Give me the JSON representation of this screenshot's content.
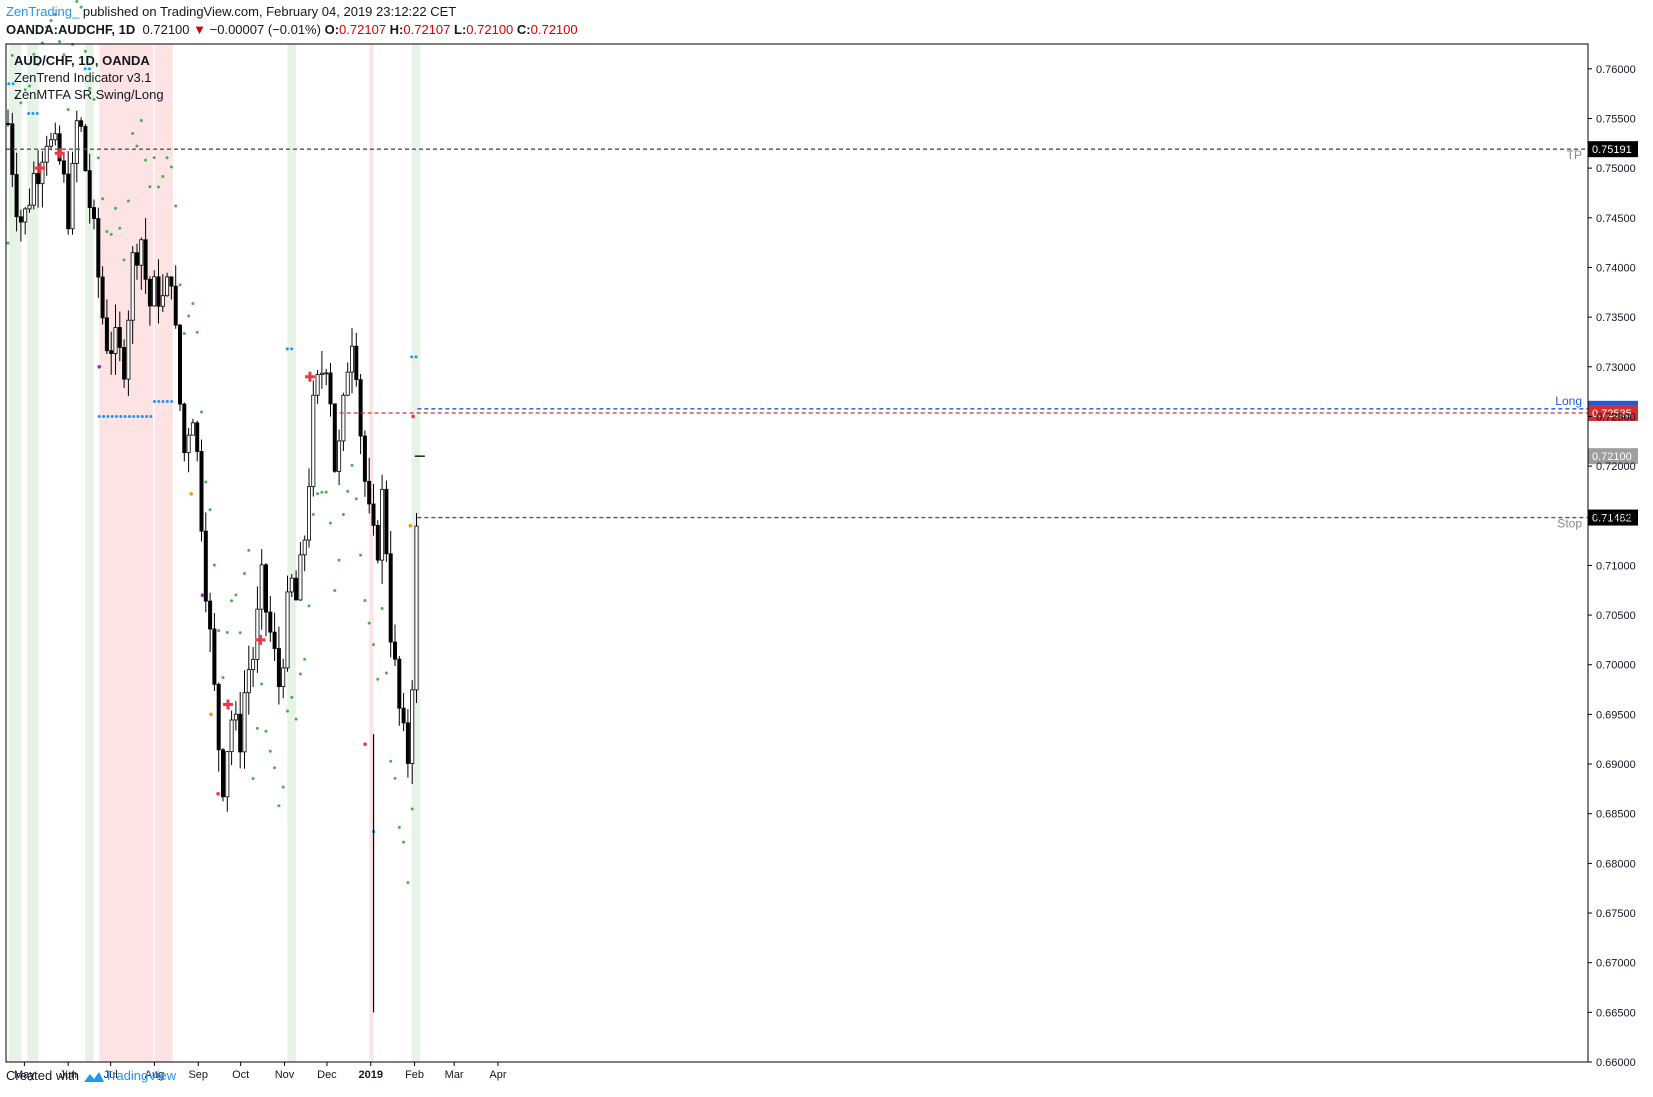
{
  "header": {
    "brand": "ZenTrading_",
    "published": " published on TradingView.com, February 04, 2019 23:12:22 CET",
    "symbol_line_prefix": "OANDA:AUDCHF, 1D",
    "last": "0.72100",
    "change_arrow": "▼",
    "change": "−0.00007 (−0.01%)",
    "o_label": "O:",
    "o_val": "0.72107",
    "h_label": "H:",
    "h_val": "0.72107",
    "l_label": "L:",
    "l_val": "0.72100",
    "c_label": "C:",
    "c_val": "0.72100"
  },
  "legend": {
    "symbol": "AUD/CHF, 1D, OANDA",
    "indicator1": "ZenTrend Indicator v3.1",
    "indicator2": "ZenMTFA SR Swing/Long"
  },
  "footer": {
    "created_with": "Created with",
    "tradingview": "TradingView"
  },
  "colors": {
    "bull_candle": "#ffffff",
    "bear_candle": "#000000",
    "trend_dots": "#4caf50",
    "sr_dots": "#2196f3",
    "signal_red": "#f23645",
    "signal_orange": "#ff9800",
    "signal_purple": "#9c27b0",
    "green_zone": "#e6f3e6",
    "red_zone": "#fde3e4",
    "long_line": "#1e5bd8",
    "entry_line": "#d32f2f",
    "tp_stop_line": "#555555"
  },
  "chart_data": {
    "type": "candlestick",
    "ylim": [
      0.66,
      0.7625
    ],
    "y_ticks": [
      "0.76000",
      "0.75500",
      "0.75000",
      "0.74500",
      "0.74000",
      "0.73500",
      "0.73000",
      "0.72500",
      "0.72000",
      "0.71500",
      "0.71000",
      "0.70500",
      "0.70000",
      "0.69500",
      "0.69000",
      "0.68500",
      "0.68000",
      "0.67500",
      "0.67000",
      "0.66500",
      "0.66000"
    ],
    "x_ticks": [
      "May",
      "Jun",
      "Jul",
      "Aug",
      "Sep",
      "Oct",
      "Nov",
      "Dec",
      "2019",
      "Feb",
      "Mar",
      "Apr"
    ],
    "levels": [
      {
        "name": "TP",
        "label": "TP",
        "price": 0.75191,
        "price_text": "0.75191"
      },
      {
        "name": "Long",
        "label": "Long",
        "price": 0.72577,
        "price_text": "0.72577"
      },
      {
        "name": "Entry",
        "label": "",
        "price": 0.72535,
        "price_text": "0.72535"
      },
      {
        "name": "Last",
        "label": "",
        "price": 0.721,
        "price_text": "0.72100"
      },
      {
        "name": "Stop",
        "label": "Stop",
        "price": 0.71482,
        "price_text": "0.71482"
      }
    ],
    "green_zones": [
      [
        "2018-04-20",
        "2018-04-29"
      ],
      [
        "2018-05-03",
        "2018-05-11"
      ],
      [
        "2018-06-13",
        "2018-06-19"
      ],
      [
        "2018-11-03",
        "2018-11-09"
      ],
      [
        "2019-01-30",
        "2019-02-05"
      ]
    ],
    "red_zones": [
      [
        "2018-06-23",
        "2018-07-31"
      ],
      [
        "2018-08-01",
        "2018-08-14"
      ],
      [
        "2018-12-31",
        "2019-01-01"
      ]
    ],
    "price_path": [
      [
        "2018-04-20",
        0.7545
      ],
      [
        "2018-04-24",
        0.748
      ],
      [
        "2018-04-30",
        0.744
      ],
      [
        "2018-05-06",
        0.7485
      ],
      [
        "2018-05-12",
        0.751
      ],
      [
        "2018-05-16",
        0.754
      ],
      [
        "2018-05-20",
        0.752
      ],
      [
        "2018-05-26",
        0.7505
      ],
      [
        "2018-06-02",
        0.745
      ],
      [
        "2018-06-08",
        0.756
      ],
      [
        "2018-06-14",
        0.749
      ],
      [
        "2018-06-20",
        0.742
      ],
      [
        "2018-06-27",
        0.733
      ],
      [
        "2018-07-04",
        0.732
      ],
      [
        "2018-07-10",
        0.73
      ],
      [
        "2018-07-16",
        0.74
      ],
      [
        "2018-07-22",
        0.744
      ],
      [
        "2018-07-28",
        0.736
      ],
      [
        "2018-08-03",
        0.738
      ],
      [
        "2018-08-08",
        0.736
      ],
      [
        "2018-08-13",
        0.74
      ],
      [
        "2018-08-18",
        0.728
      ],
      [
        "2018-08-23",
        0.72
      ],
      [
        "2018-08-27",
        0.728
      ],
      [
        "2018-09-02",
        0.718
      ],
      [
        "2018-09-08",
        0.705
      ],
      [
        "2018-09-13",
        0.696
      ],
      [
        "2018-09-18",
        0.688
      ],
      [
        "2018-09-24",
        0.695
      ],
      [
        "2018-09-30",
        0.692
      ],
      [
        "2018-10-05",
        0.699
      ],
      [
        "2018-10-10",
        0.701
      ],
      [
        "2018-10-16",
        0.708
      ],
      [
        "2018-10-22",
        0.703
      ],
      [
        "2018-10-28",
        0.698
      ],
      [
        "2018-11-02",
        0.704
      ],
      [
        "2018-11-06",
        0.708
      ],
      [
        "2018-11-10",
        0.706
      ],
      [
        "2018-11-16",
        0.714
      ],
      [
        "2018-11-21",
        0.725
      ],
      [
        "2018-11-26",
        0.729
      ],
      [
        "2018-12-02",
        0.732
      ],
      [
        "2018-12-06",
        0.72
      ],
      [
        "2018-12-11",
        0.722
      ],
      [
        "2018-12-15",
        0.73
      ],
      [
        "2018-12-20",
        0.735
      ],
      [
        "2018-12-26",
        0.721
      ],
      [
        "2019-01-01",
        0.713
      ],
      [
        "2019-01-05",
        0.711
      ],
      [
        "2019-01-10",
        0.718
      ],
      [
        "2019-01-15",
        0.704
      ],
      [
        "2019-01-19",
        0.698
      ],
      [
        "2019-01-23",
        0.693
      ],
      [
        "2019-01-27",
        0.69
      ],
      [
        "2019-01-31",
        0.701
      ],
      [
        "2019-02-04",
        0.721
      ]
    ]
  }
}
